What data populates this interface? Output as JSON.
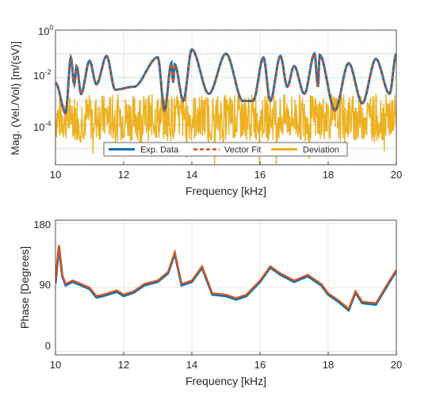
{
  "chart_data": [
    {
      "type": "line",
      "xlabel": "Frequency [kHz]",
      "ylabel": "Mag. (Vel./Vol) [m/(sV)]",
      "yscale": "log",
      "xlim": [
        10,
        20
      ],
      "ylim": [
        2e-06,
        1
      ],
      "xticks": [
        "10",
        "12",
        "14",
        "16",
        "18",
        "20"
      ],
      "yticks": [
        {
          "base": "10",
          "exp": "0",
          "value": 1
        },
        {
          "base": "10",
          "exp": "-2",
          "value": 0.01
        },
        {
          "base": "10",
          "exp": "-4",
          "value": 0.0001
        }
      ],
      "grid": true,
      "legend_placement": "bottom, inside axes",
      "series": [
        {
          "name": "Exp. Data",
          "color": "#0072BD",
          "style": "solid"
        },
        {
          "name": "Vector Fit",
          "color": "#D95319",
          "style": "dashed"
        },
        {
          "name": "Deviation",
          "color": "#EDB120",
          "style": "solid"
        }
      ],
      "resonance_peaks_kHz": [
        10.45,
        10.62,
        11.0,
        11.5,
        13.0,
        13.4,
        13.5,
        14.0,
        15.0,
        16.1,
        16.6,
        17.0,
        17.6,
        17.75,
        18.6,
        19.4,
        20.0
      ],
      "resonance_peaks_value": [
        0.07,
        0.03,
        0.05,
        0.08,
        0.07,
        0.04,
        0.035,
        0.15,
        0.1,
        0.07,
        0.08,
        0.03,
        0.1,
        0.09,
        0.04,
        0.06,
        0.1
      ],
      "antiresonances_kHz": [
        10.3,
        10.55,
        10.75,
        11.2,
        11.75,
        12.3,
        13.2,
        13.45,
        13.75,
        14.5,
        15.5,
        15.8,
        16.3,
        16.8,
        17.3,
        17.7,
        18.2,
        19.0,
        19.8
      ],
      "antiresonances_value": [
        0.0003,
        0.005,
        0.002,
        0.005,
        0.003,
        0.004,
        0.0004,
        0.006,
        0.001,
        0.002,
        0.001,
        0.001,
        0.001,
        0.004,
        0.002,
        0.004,
        0.0004,
        0.0008,
        0.002
      ],
      "deviation_typical_range": [
        2e-05,
        0.002
      ]
    },
    {
      "type": "line",
      "xlabel": "Frequency [kHz]",
      "ylabel": "Phase [Degrees]",
      "xlim": [
        10,
        20
      ],
      "ylim": [
        -5,
        185
      ],
      "xticks": [
        "10",
        "12",
        "14",
        "16",
        "18",
        "20"
      ],
      "yticks": [
        "0",
        "90",
        "180"
      ],
      "grid": true,
      "series": [
        {
          "name": "Exp. Data",
          "color": "#0072BD"
        },
        {
          "name": "Vector Fit",
          "color": "#D95319"
        }
      ],
      "x": [
        10.0,
        10.1,
        10.2,
        10.3,
        10.5,
        10.65,
        11.0,
        11.2,
        11.4,
        11.8,
        12.0,
        12.3,
        12.6,
        13.0,
        13.3,
        13.5,
        13.7,
        14.0,
        14.3,
        14.6,
        15.0,
        15.3,
        15.6,
        16.0,
        16.3,
        16.6,
        17.0,
        17.4,
        17.8,
        18.0,
        18.3,
        18.6,
        18.8,
        19.0,
        19.4,
        19.8,
        20.0
      ],
      "y": [
        98,
        150,
        108,
        95,
        100,
        97,
        90,
        78,
        80,
        86,
        80,
        85,
        95,
        100,
        112,
        140,
        95,
        100,
        120,
        82,
        80,
        75,
        80,
        100,
        120,
        110,
        100,
        108,
        95,
        82,
        72,
        60,
        85,
        70,
        68,
        100,
        115
      ]
    }
  ]
}
